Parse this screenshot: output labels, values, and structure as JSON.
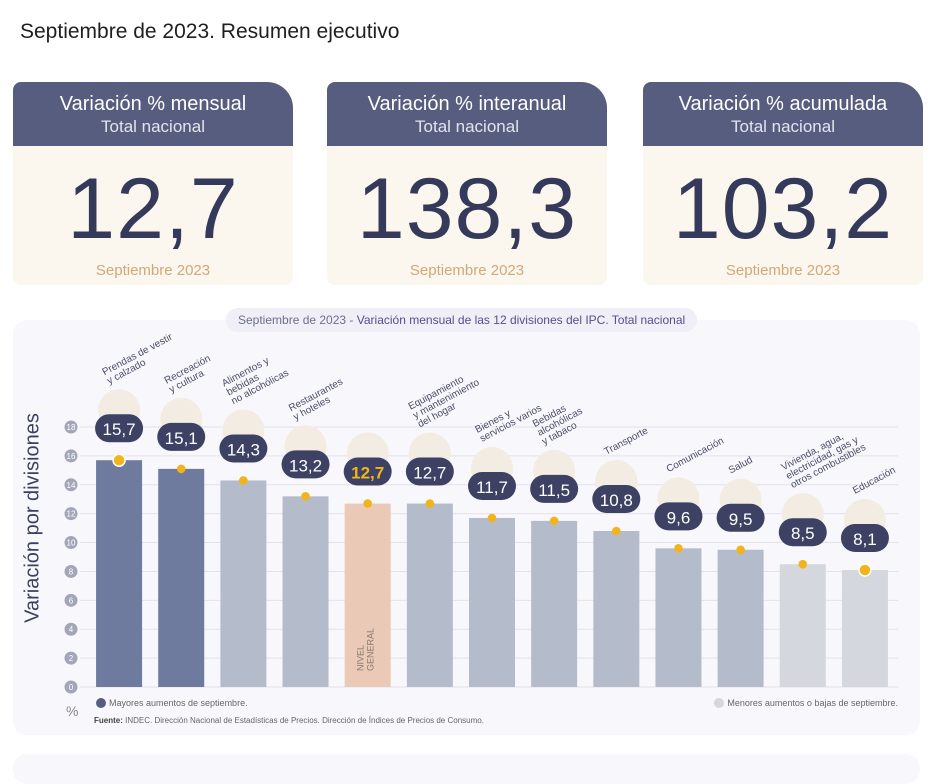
{
  "page": {
    "title": "Septiembre de 2023. Resumen ejecutivo"
  },
  "kpis": [
    {
      "title": "Variación % mensual",
      "subtitle": "Total nacional",
      "value": "12,7",
      "period": "Septiembre 2023"
    },
    {
      "title": "Variación % interanual",
      "subtitle": "Total nacional",
      "value": "138,3",
      "period": "Septiembre 2023"
    },
    {
      "title": "Variación % acumulada",
      "subtitle": "Total nacional",
      "value": "103,2",
      "period": "Septiembre 2023"
    }
  ],
  "chart": {
    "title_prefix": "Septiembre de 2023",
    "title_sep": " - ",
    "title_main": "Variación mensual de las 12 divisiones del IPC. Total nacional",
    "ylabel": "Variación por divisiones",
    "unit": "%",
    "legend_high": "Mayores aumentos de septiembre.",
    "legend_low": "Menores aumentos o bajas de septiembre.",
    "source_label": "Fuente:",
    "source_text": " INDEC. Dirección Nacional de Estadísticas de Precios. Dirección de Índices de Precios de Consumo."
  },
  "chart_data": {
    "type": "bar",
    "ylim": [
      0,
      18
    ],
    "yticks": [
      0,
      2,
      4,
      6,
      8,
      10,
      12,
      14,
      16,
      18
    ],
    "grid": true,
    "legend": "bottom",
    "categories": [
      [
        "Prendas de vestir",
        "y calzado"
      ],
      [
        "Recreación",
        "y cultura"
      ],
      [
        "Alimentos y",
        "bebidas",
        "no alcohólicas"
      ],
      [
        "Restaurantes",
        "y hoteles"
      ],
      [
        "NIVEL",
        "GENERAL"
      ],
      [
        "Equipamiento",
        "y mantenimiento",
        "del hogar"
      ],
      [
        "Bienes y",
        "servicios varios"
      ],
      [
        "Bebidas",
        "alcohólicas",
        "y tabaco"
      ],
      [
        "Transporte"
      ],
      [
        "Comunicación"
      ],
      [
        "Salud"
      ],
      [
        "Vivienda, agua,",
        "electricidad, gas y",
        "otros combustibles"
      ],
      [
        "Educación"
      ]
    ],
    "values": [
      15.7,
      15.1,
      14.3,
      13.2,
      12.7,
      12.7,
      11.7,
      11.5,
      10.8,
      9.6,
      9.5,
      8.5,
      8.1
    ],
    "labels": [
      "15,7",
      "15,1",
      "14,3",
      "13,2",
      "12,7",
      "12,7",
      "11,7",
      "11,5",
      "10,8",
      "9,6",
      "9,5",
      "8,5",
      "8,1"
    ],
    "colors": [
      "#6e7a9e",
      "#6e7a9e",
      "#b4bccb",
      "#b4bccb",
      "#eacab7",
      "#b4bccb",
      "#b4bccb",
      "#b4bccb",
      "#b4bccb",
      "#b4bccb",
      "#b4bccb",
      "#d4d7dd",
      "#d4d7dd"
    ],
    "icons": [
      "shirt-icon",
      "beach-umbrella-icon",
      "food-icon",
      "restaurant-icon",
      "shopping-basket-icon",
      "washing-machine-icon",
      "comb-icon",
      "drinks-icon",
      "bus-card-icon",
      "phone-icon",
      "medical-kit-icon",
      "utilities-icon",
      "education-icon"
    ],
    "colors_legend": {
      "high": "#575d7e",
      "low": "#d4d7dd",
      "marker": "#f2b41b",
      "highlight_label": "#f2b41b"
    }
  }
}
